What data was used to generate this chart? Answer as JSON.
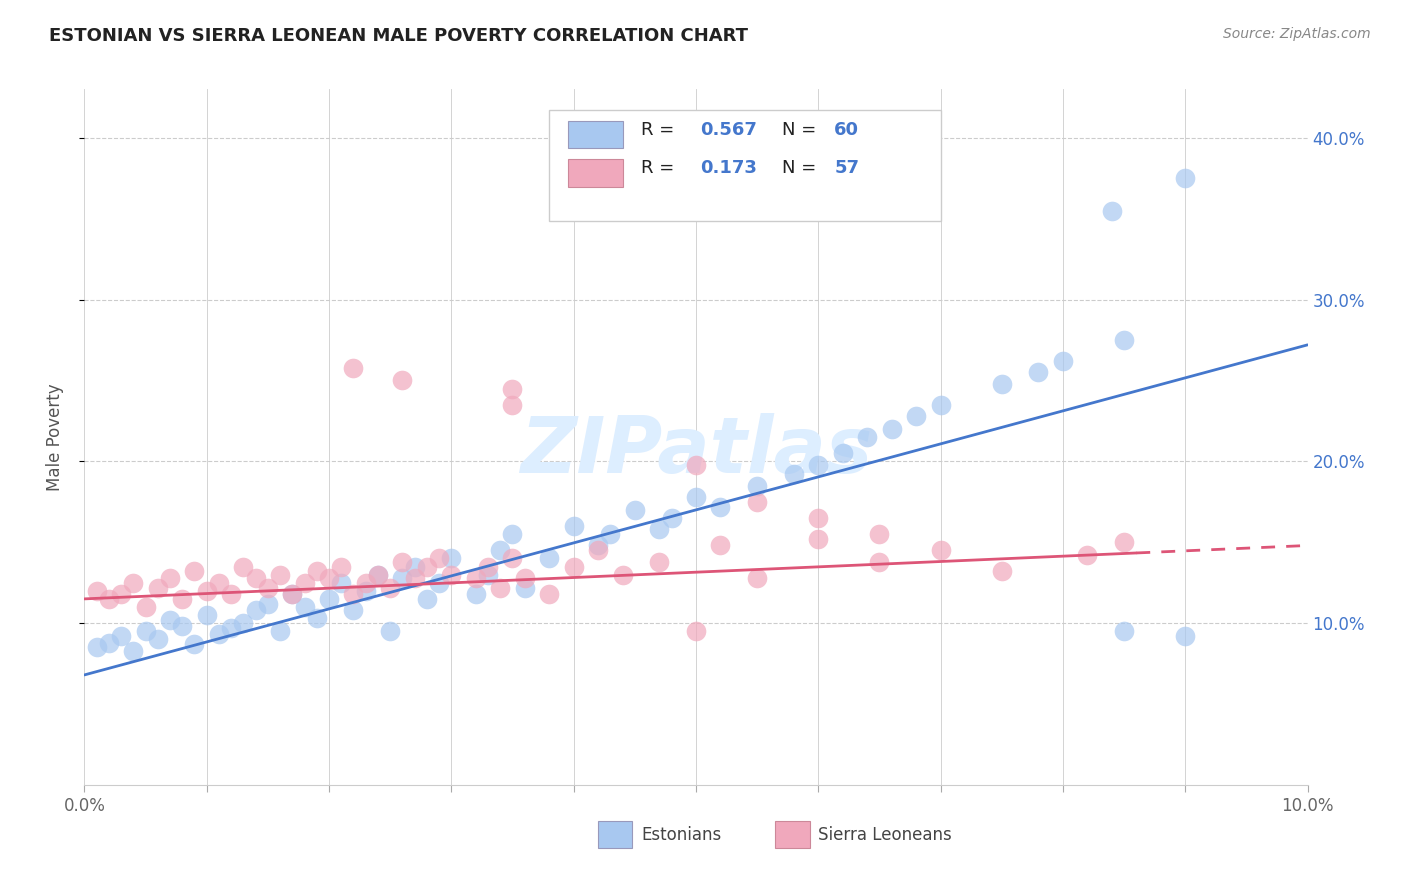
{
  "title": "ESTONIAN VS SIERRA LEONEAN MALE POVERTY CORRELATION CHART",
  "source": "Source: ZipAtlas.com",
  "ylabel": "Male Poverty",
  "y_ticks": [
    0.1,
    0.2,
    0.3,
    0.4
  ],
  "y_tick_labels": [
    "10.0%",
    "20.0%",
    "30.0%",
    "40.0%"
  ],
  "xlim": [
    0.0,
    0.1
  ],
  "ylim": [
    0.0,
    0.43
  ],
  "legend_footer": [
    "Estonians",
    "Sierra Leoneans"
  ],
  "blue_color": "#a8c8f0",
  "pink_color": "#f0a8bc",
  "blue_line_color": "#4477cc",
  "pink_line_color": "#dd5577",
  "blue_line_y0": 0.068,
  "blue_line_y1": 0.272,
  "pink_line_y0": 0.115,
  "pink_line_y1": 0.148,
  "grid_color": "#cccccc",
  "bg_color": "#ffffff",
  "watermark_color": "#ddeeff",
  "blue_points": [
    [
      0.001,
      0.085
    ],
    [
      0.002,
      0.088
    ],
    [
      0.003,
      0.092
    ],
    [
      0.004,
      0.083
    ],
    [
      0.005,
      0.095
    ],
    [
      0.006,
      0.09
    ],
    [
      0.007,
      0.102
    ],
    [
      0.008,
      0.098
    ],
    [
      0.009,
      0.087
    ],
    [
      0.01,
      0.105
    ],
    [
      0.011,
      0.093
    ],
    [
      0.012,
      0.097
    ],
    [
      0.013,
      0.1
    ],
    [
      0.014,
      0.108
    ],
    [
      0.015,
      0.112
    ],
    [
      0.016,
      0.095
    ],
    [
      0.017,
      0.118
    ],
    [
      0.018,
      0.11
    ],
    [
      0.019,
      0.103
    ],
    [
      0.02,
      0.115
    ],
    [
      0.021,
      0.125
    ],
    [
      0.022,
      0.108
    ],
    [
      0.023,
      0.12
    ],
    [
      0.024,
      0.13
    ],
    [
      0.025,
      0.095
    ],
    [
      0.026,
      0.128
    ],
    [
      0.027,
      0.135
    ],
    [
      0.028,
      0.115
    ],
    [
      0.029,
      0.125
    ],
    [
      0.03,
      0.14
    ],
    [
      0.032,
      0.118
    ],
    [
      0.033,
      0.13
    ],
    [
      0.034,
      0.145
    ],
    [
      0.035,
      0.155
    ],
    [
      0.036,
      0.122
    ],
    [
      0.038,
      0.14
    ],
    [
      0.04,
      0.16
    ],
    [
      0.042,
      0.148
    ],
    [
      0.043,
      0.155
    ],
    [
      0.045,
      0.17
    ],
    [
      0.047,
      0.158
    ],
    [
      0.048,
      0.165
    ],
    [
      0.05,
      0.178
    ],
    [
      0.052,
      0.172
    ],
    [
      0.055,
      0.185
    ],
    [
      0.058,
      0.192
    ],
    [
      0.06,
      0.198
    ],
    [
      0.062,
      0.205
    ],
    [
      0.064,
      0.215
    ],
    [
      0.066,
      0.22
    ],
    [
      0.068,
      0.228
    ],
    [
      0.07,
      0.235
    ],
    [
      0.075,
      0.248
    ],
    [
      0.078,
      0.255
    ],
    [
      0.08,
      0.262
    ],
    [
      0.085,
      0.275
    ],
    [
      0.084,
      0.355
    ],
    [
      0.09,
      0.375
    ],
    [
      0.085,
      0.095
    ],
    [
      0.09,
      0.092
    ]
  ],
  "pink_points": [
    [
      0.001,
      0.12
    ],
    [
      0.002,
      0.115
    ],
    [
      0.003,
      0.118
    ],
    [
      0.004,
      0.125
    ],
    [
      0.005,
      0.11
    ],
    [
      0.006,
      0.122
    ],
    [
      0.007,
      0.128
    ],
    [
      0.008,
      0.115
    ],
    [
      0.009,
      0.132
    ],
    [
      0.01,
      0.12
    ],
    [
      0.011,
      0.125
    ],
    [
      0.012,
      0.118
    ],
    [
      0.013,
      0.135
    ],
    [
      0.014,
      0.128
    ],
    [
      0.015,
      0.122
    ],
    [
      0.016,
      0.13
    ],
    [
      0.017,
      0.118
    ],
    [
      0.018,
      0.125
    ],
    [
      0.019,
      0.132
    ],
    [
      0.02,
      0.128
    ],
    [
      0.021,
      0.135
    ],
    [
      0.022,
      0.118
    ],
    [
      0.023,
      0.125
    ],
    [
      0.024,
      0.13
    ],
    [
      0.025,
      0.122
    ],
    [
      0.026,
      0.138
    ],
    [
      0.027,
      0.128
    ],
    [
      0.028,
      0.135
    ],
    [
      0.029,
      0.14
    ],
    [
      0.03,
      0.13
    ],
    [
      0.032,
      0.128
    ],
    [
      0.033,
      0.135
    ],
    [
      0.034,
      0.122
    ],
    [
      0.035,
      0.14
    ],
    [
      0.036,
      0.128
    ],
    [
      0.038,
      0.118
    ],
    [
      0.04,
      0.135
    ],
    [
      0.042,
      0.145
    ],
    [
      0.044,
      0.13
    ],
    [
      0.047,
      0.138
    ],
    [
      0.05,
      0.095
    ],
    [
      0.052,
      0.148
    ],
    [
      0.055,
      0.128
    ],
    [
      0.06,
      0.152
    ],
    [
      0.065,
      0.138
    ],
    [
      0.07,
      0.145
    ],
    [
      0.075,
      0.132
    ],
    [
      0.082,
      0.142
    ],
    [
      0.085,
      0.15
    ],
    [
      0.022,
      0.258
    ],
    [
      0.026,
      0.25
    ],
    [
      0.035,
      0.245
    ],
    [
      0.035,
      0.235
    ],
    [
      0.05,
      0.198
    ],
    [
      0.055,
      0.175
    ],
    [
      0.06,
      0.165
    ],
    [
      0.065,
      0.155
    ]
  ]
}
